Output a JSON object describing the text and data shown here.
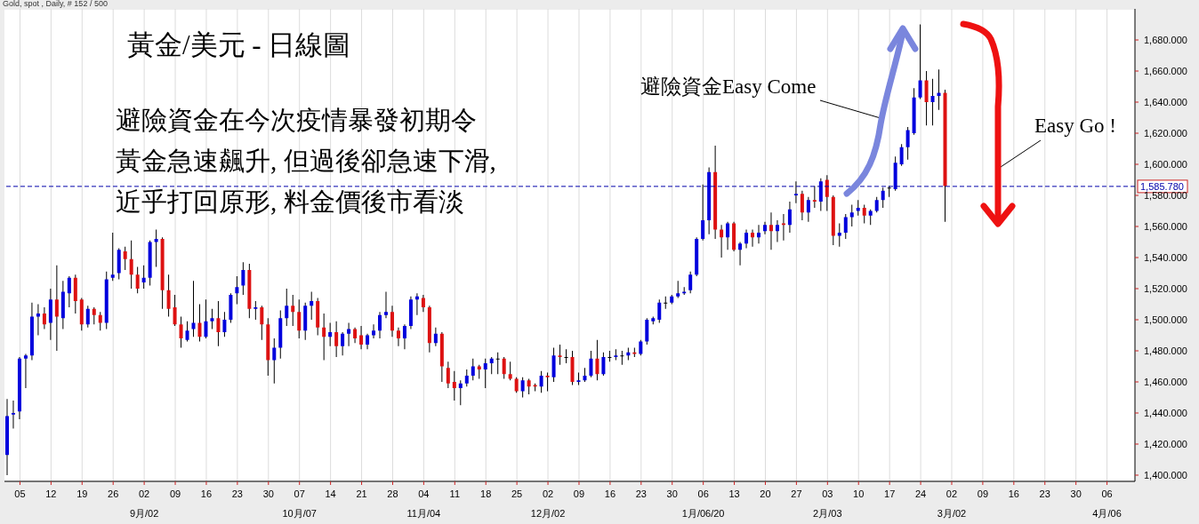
{
  "chart_data": {
    "type": "candlestick",
    "title": "黃金/美元 - 日線圖",
    "subtitle": "Gold, spot , Daily, # 152 / 500",
    "annotations": [
      "避險資金在今次疫情暴發初期令",
      "黃金急速飆升, 但過後卻急速下滑,",
      "近乎打回原形, 料金價後市看淡",
      "避險資金Easy Come",
      "Easy Go !"
    ],
    "categories": [
      null,
      null,
      "05",
      null,
      null,
      null,
      null,
      "12",
      null,
      null,
      null,
      null,
      "19",
      null,
      null,
      null,
      null,
      "26",
      null,
      null,
      null,
      null,
      "02\n9月/02",
      null,
      null,
      null,
      null,
      "09",
      null,
      null,
      null,
      null,
      "16",
      null,
      null,
      null,
      null,
      "23",
      null,
      null,
      null,
      null,
      "30",
      null,
      null,
      null,
      null,
      "07\n10月/07",
      null,
      null,
      null,
      null,
      "14",
      null,
      null,
      null,
      null,
      "21",
      null,
      null,
      null,
      null,
      "28",
      null,
      null,
      null,
      null,
      "04\n11月/04",
      null,
      null,
      null,
      null,
      "11",
      null,
      null,
      null,
      null,
      "18",
      null,
      null,
      null,
      null,
      "25",
      null,
      null,
      null,
      null,
      "02\n12月/02",
      null,
      null,
      null,
      null,
      "09",
      null,
      null,
      null,
      null,
      "16",
      null,
      null,
      null,
      null,
      "23",
      null,
      null,
      null,
      null,
      "30",
      null,
      null,
      null,
      null,
      "06\n1月/06/20",
      null,
      null,
      null,
      null,
      "13",
      null,
      null,
      null,
      null,
      "20",
      null,
      null,
      null,
      null,
      "27",
      null,
      null,
      null,
      null,
      "03\n2月/03",
      null,
      null,
      null,
      null,
      "10",
      null,
      null,
      null,
      null,
      "17",
      null,
      null,
      null,
      null,
      "24",
      null,
      null,
      null,
      null,
      "02\n3月/02",
      null,
      null,
      null,
      null,
      "09",
      null,
      null,
      null,
      null,
      "16",
      null,
      null,
      null,
      null,
      "23",
      null,
      null,
      null,
      null,
      "30",
      null,
      null,
      null,
      null,
      "06\n4月/06",
      null,
      null,
      null,
      null
    ],
    "ohlc": [
      [
        1413,
        1449,
        1400,
        1438
      ],
      [
        1439,
        1448,
        1430,
        1440
      ],
      [
        1441,
        1476,
        1436,
        1475
      ],
      [
        1475,
        1478,
        1456,
        1477
      ],
      [
        1477,
        1511,
        1474,
        1502
      ],
      [
        1502,
        1510,
        1490,
        1504
      ],
      [
        1504,
        1508,
        1494,
        1497
      ],
      [
        1498,
        1520,
        1487,
        1513
      ],
      [
        1513,
        1535,
        1480,
        1502
      ],
      [
        1501,
        1525,
        1494,
        1518
      ],
      [
        1517,
        1528,
        1508,
        1527
      ],
      [
        1527,
        1529,
        1504,
        1512
      ],
      [
        1513,
        1514,
        1493,
        1497
      ],
      [
        1497,
        1509,
        1495,
        1507
      ],
      [
        1507,
        1508,
        1497,
        1503
      ],
      [
        1503,
        1505,
        1493,
        1498
      ],
      [
        1498,
        1531,
        1494,
        1526
      ],
      [
        1527,
        1556,
        1525,
        1529
      ],
      [
        1530,
        1546,
        1526,
        1545
      ],
      [
        1544,
        1547,
        1532,
        1539
      ],
      [
        1539,
        1551,
        1520,
        1529
      ],
      [
        1529,
        1534,
        1517,
        1520
      ],
      [
        1524,
        1535,
        1520,
        1527
      ],
      [
        1527,
        1551,
        1522,
        1550
      ],
      [
        1550,
        1558,
        1534,
        1552
      ],
      [
        1552,
        1553,
        1507,
        1519
      ],
      [
        1519,
        1529,
        1502,
        1507
      ],
      [
        1508,
        1516,
        1496,
        1497
      ],
      [
        1497,
        1502,
        1482,
        1488
      ],
      [
        1487,
        1499,
        1486,
        1493
      ],
      [
        1494,
        1525,
        1489,
        1498
      ],
      [
        1498,
        1510,
        1486,
        1489
      ],
      [
        1489,
        1513,
        1488,
        1499
      ],
      [
        1499,
        1507,
        1494,
        1501
      ],
      [
        1501,
        1512,
        1483,
        1492
      ],
      [
        1492,
        1505,
        1489,
        1500
      ],
      [
        1500,
        1517,
        1498,
        1516
      ],
      [
        1517,
        1528,
        1510,
        1521
      ],
      [
        1522,
        1537,
        1516,
        1532
      ],
      [
        1532,
        1536,
        1501,
        1507
      ],
      [
        1507,
        1512,
        1500,
        1508
      ],
      [
        1508,
        1509,
        1487,
        1497
      ],
      [
        1497,
        1501,
        1464,
        1474
      ],
      [
        1474,
        1488,
        1459,
        1482
      ],
      [
        1482,
        1506,
        1475,
        1501
      ],
      [
        1501,
        1520,
        1496,
        1509
      ],
      [
        1509,
        1516,
        1496,
        1505
      ],
      [
        1505,
        1513,
        1488,
        1493
      ],
      [
        1493,
        1511,
        1487,
        1509
      ],
      [
        1509,
        1518,
        1500,
        1512
      ],
      [
        1512,
        1514,
        1490,
        1495
      ],
      [
        1495,
        1504,
        1474,
        1489
      ],
      [
        1489,
        1498,
        1483,
        1492
      ],
      [
        1492,
        1499,
        1476,
        1483
      ],
      [
        1483,
        1492,
        1477,
        1491
      ],
      [
        1491,
        1498,
        1483,
        1494
      ],
      [
        1494,
        1495,
        1485,
        1488
      ],
      [
        1490,
        1496,
        1481,
        1484
      ],
      [
        1484,
        1491,
        1481,
        1490
      ],
      [
        1490,
        1497,
        1488,
        1493
      ],
      [
        1493,
        1505,
        1488,
        1503
      ],
      [
        1503,
        1518,
        1501,
        1505
      ],
      [
        1505,
        1509,
        1489,
        1493
      ],
      [
        1493,
        1495,
        1483,
        1488
      ],
      [
        1488,
        1497,
        1481,
        1496
      ],
      [
        1496,
        1515,
        1494,
        1513
      ],
      [
        1513,
        1517,
        1503,
        1515
      ],
      [
        1514,
        1516,
        1505,
        1508
      ],
      [
        1508,
        1509,
        1479,
        1485
      ],
      [
        1485,
        1495,
        1483,
        1491
      ],
      [
        1491,
        1492,
        1460,
        1470
      ],
      [
        1469,
        1473,
        1456,
        1459
      ],
      [
        1460,
        1467,
        1448,
        1456
      ],
      [
        1456,
        1461,
        1445,
        1459
      ],
      [
        1459,
        1468,
        1457,
        1464
      ],
      [
        1464,
        1475,
        1461,
        1470
      ],
      [
        1470,
        1471,
        1462,
        1468
      ],
      [
        1468,
        1475,
        1456,
        1472
      ],
      [
        1472,
        1476,
        1465,
        1475
      ],
      [
        1475,
        1479,
        1465,
        1475
      ],
      [
        1475,
        1476,
        1462,
        1465
      ],
      [
        1465,
        1473,
        1461,
        1462
      ],
      [
        1462,
        1463,
        1453,
        1454
      ],
      [
        1454,
        1463,
        1450,
        1461
      ],
      [
        1461,
        1462,
        1452,
        1457
      ],
      [
        1458,
        1459,
        1454,
        1457
      ],
      [
        1457,
        1467,
        1453,
        1464
      ],
      [
        1464,
        1466,
        1454,
        1463
      ],
      [
        1463,
        1482,
        1460,
        1477
      ],
      [
        1477,
        1484,
        1471,
        1476
      ],
      [
        1476,
        1481,
        1472,
        1476
      ],
      [
        1476,
        1480,
        1458,
        1460
      ],
      [
        1460,
        1466,
        1458,
        1461
      ],
      [
        1461,
        1469,
        1460,
        1464
      ],
      [
        1464,
        1480,
        1463,
        1475
      ],
      [
        1475,
        1487,
        1461,
        1465
      ],
      [
        1465,
        1479,
        1464,
        1476
      ],
      [
        1476,
        1480,
        1473,
        1476
      ],
      [
        1476,
        1481,
        1474,
        1477
      ],
      [
        1477,
        1480,
        1471,
        1477
      ],
      [
        1477,
        1482,
        1474,
        1479
      ],
      [
        1479,
        1482,
        1476,
        1478
      ],
      [
        1478,
        1487,
        1477,
        1486
      ],
      [
        1486,
        1501,
        1484,
        1500
      ],
      [
        1499,
        1502,
        1497,
        1501
      ],
      [
        1500,
        1513,
        1498,
        1511
      ],
      [
        1511,
        1515,
        1507,
        1511
      ],
      [
        1511,
        1516,
        1510,
        1515
      ],
      [
        1515,
        1525,
        1514,
        1517
      ],
      [
        1517,
        1521,
        1516,
        1518
      ],
      [
        1519,
        1531,
        1517,
        1529
      ],
      [
        1529,
        1553,
        1528,
        1552
      ],
      [
        1552,
        1587,
        1551,
        1564
      ],
      [
        1564,
        1598,
        1555,
        1595
      ],
      [
        1595,
        1612,
        1552,
        1558
      ],
      [
        1558,
        1561,
        1540,
        1553
      ],
      [
        1553,
        1563,
        1545,
        1562
      ],
      [
        1562,
        1563,
        1544,
        1545
      ],
      [
        1545,
        1550,
        1535,
        1549
      ],
      [
        1549,
        1558,
        1546,
        1556
      ],
      [
        1556,
        1558,
        1547,
        1553
      ],
      [
        1553,
        1561,
        1549,
        1556
      ],
      [
        1557,
        1563,
        1555,
        1561
      ],
      [
        1561,
        1569,
        1545,
        1557
      ],
      [
        1557,
        1564,
        1550,
        1561
      ],
      [
        1562,
        1568,
        1551,
        1561
      ],
      [
        1561,
        1576,
        1556,
        1571
      ],
      [
        1580,
        1589,
        1575,
        1581
      ],
      [
        1581,
        1583,
        1564,
        1569
      ],
      [
        1569,
        1579,
        1563,
        1577
      ],
      [
        1577,
        1586,
        1572,
        1576
      ],
      [
        1576,
        1591,
        1570,
        1589
      ],
      [
        1590,
        1593,
        1570,
        1579
      ],
      [
        1579,
        1580,
        1548,
        1554
      ],
      [
        1554,
        1562,
        1547,
        1556
      ],
      [
        1556,
        1568,
        1552,
        1566
      ],
      [
        1566,
        1574,
        1560,
        1569
      ],
      [
        1570,
        1577,
        1567,
        1572
      ],
      [
        1572,
        1574,
        1562,
        1567
      ],
      [
        1567,
        1571,
        1561,
        1570
      ],
      [
        1570,
        1579,
        1569,
        1577
      ],
      [
        1577,
        1585,
        1572,
        1583
      ],
      [
        1585,
        1586,
        1579,
        1585
      ],
      [
        1584,
        1605,
        1583,
        1601
      ],
      [
        1600,
        1613,
        1599,
        1611
      ],
      [
        1611,
        1624,
        1603,
        1622
      ],
      [
        1620,
        1649,
        1619,
        1643
      ],
      [
        1643,
        1690,
        1642,
        1654
      ],
      [
        1654,
        1660,
        1625,
        1640
      ],
      [
        1640,
        1655,
        1625,
        1644
      ],
      [
        1644,
        1661,
        1635,
        1646
      ],
      [
        1646,
        1648,
        1563,
        1586
      ],
      null,
      null,
      null,
      null,
      null,
      null,
      null,
      null,
      null,
      null,
      null,
      null,
      null,
      null,
      null,
      null,
      null,
      null,
      null,
      null,
      null,
      null,
      null,
      null,
      null,
      null,
      null,
      null,
      null,
      null
    ],
    "colors": [
      "#0000dd",
      "#0000dd",
      "#0000dd",
      "#0000dd",
      "#0000dd",
      "#0000dd",
      "#dd1111",
      "#0000dd",
      "#dd1111",
      "#0000dd",
      "#0000dd",
      "#dd1111",
      "#dd1111",
      "#0000dd",
      "#dd1111",
      "#dd1111",
      "#0000dd",
      "#0000dd",
      "#0000dd",
      "#dd1111",
      "#dd1111",
      "#dd1111",
      "#0000dd",
      "#0000dd",
      "#0000dd",
      "#dd1111",
      "#dd1111",
      "#dd1111",
      "#dd1111",
      "#0000dd",
      "#0000dd",
      "#dd1111",
      "#0000dd",
      "#0000dd",
      "#dd1111",
      "#0000dd",
      "#0000dd",
      "#0000dd",
      "#0000dd",
      "#dd1111",
      "#0000dd",
      "#dd1111",
      "#dd1111",
      "#0000dd",
      "#0000dd",
      "#0000dd",
      "#dd1111",
      "#dd1111",
      "#0000dd",
      "#0000dd",
      "#dd1111",
      "#dd1111",
      "#0000dd",
      "#dd1111",
      "#0000dd",
      "#0000dd",
      "#dd1111",
      "#dd1111",
      "#0000dd",
      "#0000dd",
      "#0000dd",
      "#0000dd",
      "#dd1111",
      "#dd1111",
      "#0000dd",
      "#0000dd",
      "#0000dd",
      "#dd1111",
      "#dd1111",
      "#0000dd",
      "#dd1111",
      "#dd1111",
      "#dd1111",
      "#0000dd",
      "#0000dd",
      "#0000dd",
      "#dd1111",
      "#0000dd",
      "#0000dd",
      "#000000",
      "#dd1111",
      "#dd1111",
      "#dd1111",
      "#0000dd",
      "#dd1111",
      "#dd1111",
      "#0000dd",
      "#dd1111",
      "#0000dd",
      "#dd1111",
      "#000000",
      "#dd1111",
      "#0000dd",
      "#0000dd",
      "#0000dd",
      "#dd1111",
      "#0000dd",
      "#000000",
      "#0000dd",
      "#000000",
      "#0000dd",
      "#dd1111",
      "#0000dd",
      "#0000dd",
      "#0000dd",
      "#0000dd",
      "#000000",
      "#0000dd",
      "#0000dd",
      "#0000dd",
      "#0000dd",
      "#0000dd",
      "#0000dd",
      "#0000dd",
      "#dd1111",
      "#dd1111",
      "#0000dd",
      "#dd1111",
      "#0000dd",
      "#0000dd",
      "#dd1111",
      "#0000dd",
      "#0000dd",
      "#dd1111",
      "#0000dd",
      "#dd1111",
      "#0000dd",
      "#0000dd",
      "#dd1111",
      "#0000dd",
      "#dd1111",
      "#0000dd",
      "#dd1111",
      "#dd1111",
      "#0000dd",
      "#0000dd",
      "#0000dd",
      "#0000dd",
      "#dd1111",
      "#0000dd",
      "#0000dd",
      "#0000dd",
      "#000000",
      "#0000dd",
      "#0000dd",
      "#0000dd",
      "#0000dd",
      "#0000dd",
      "#dd1111",
      "#0000dd",
      "#0000dd",
      "#dd1111",
      null,
      null,
      null,
      null,
      null,
      null,
      null,
      null,
      null,
      null,
      null,
      null,
      null,
      null,
      null,
      null,
      null,
      null,
      null,
      null,
      null,
      null,
      null,
      null,
      null,
      null,
      null,
      null,
      null,
      null
    ],
    "ylim": [
      1396,
      1700
    ],
    "yticks": [
      {
        "value": 1400,
        "label": "1,400.000"
      },
      {
        "value": 1420,
        "label": "1,420.000"
      },
      {
        "value": 1440,
        "label": "1,440.000"
      },
      {
        "value": 1460,
        "label": "1,460.000"
      },
      {
        "value": 1480,
        "label": "1,480.000"
      },
      {
        "value": 1500,
        "label": "1,500.000"
      },
      {
        "value": 1520,
        "label": "1,520.000"
      },
      {
        "value": 1540,
        "label": "1,540.000"
      },
      {
        "value": 1560,
        "label": "1,560.000"
      },
      {
        "value": 1580,
        "label": "1,580.000"
      },
      {
        "value": 1600,
        "label": "1,600.000"
      },
      {
        "value": 1620,
        "label": "1,620.000"
      },
      {
        "value": 1640,
        "label": "1,640.000"
      },
      {
        "value": 1660,
        "label": "1,660.000"
      },
      {
        "value": 1680,
        "label": "1,680.000"
      }
    ],
    "ref_lines": [
      {
        "axis": "y",
        "value": 1585.78,
        "label": "1,585.780",
        "color": "#0000aa",
        "line_style": "dashed"
      }
    ],
    "grid": true
  }
}
